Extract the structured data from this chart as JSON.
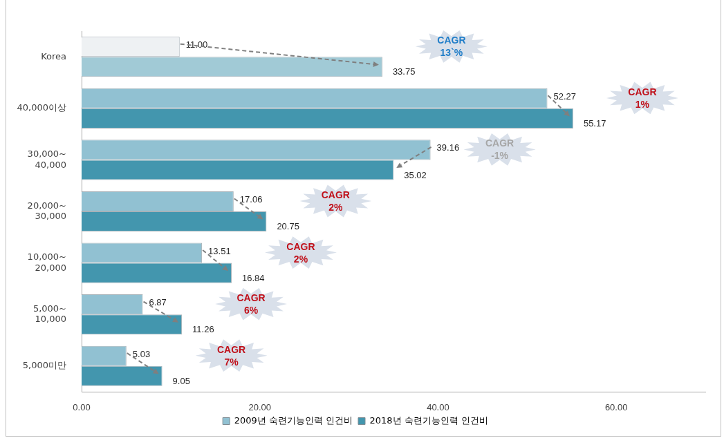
{
  "chart_data": {
    "type": "bar",
    "orientation": "horizontal",
    "categories": [
      "Korea",
      "40,000이상",
      "30,000~ 40,000",
      "20,000~ 30,000",
      "10,000~ 20,000",
      "5,000~ 10,000",
      "5,000미만"
    ],
    "series": [
      {
        "name": "2009년 숙련기능인력 인건비",
        "color": "#91c1d2",
        "colors": [
          "#eef1f3",
          "#91c1d2",
          "#91c1d2",
          "#91c1d2",
          "#91c1d2",
          "#91c1d2",
          "#91c1d2"
        ],
        "values": [
          11.0,
          52.27,
          39.16,
          17.06,
          13.51,
          6.87,
          5.03
        ],
        "value_labels": [
          "11.00",
          "52.27",
          "39.16",
          "17.06",
          "13.51",
          "6.87",
          "5.03"
        ]
      },
      {
        "name": "2018년 숙련기능인력 인건비",
        "color": "#4396ae",
        "colors": [
          "#a1cad6",
          "#4396ae",
          "#4396ae",
          "#4396ae",
          "#4396ae",
          "#4396ae",
          "#4396ae"
        ],
        "values": [
          33.75,
          55.17,
          35.02,
          20.75,
          16.84,
          11.26,
          9.05
        ],
        "value_labels": [
          "33.75",
          "55.17",
          "35.02",
          "20.75",
          "16.84",
          "11.26",
          "9.05"
        ]
      }
    ],
    "xlim": [
      0,
      70
    ],
    "xticks": [
      {
        "value": 0,
        "label": "0.00"
      },
      {
        "value": 20,
        "label": "20.00"
      },
      {
        "value": 40,
        "label": "40.00"
      },
      {
        "value": 60,
        "label": "60.00"
      }
    ],
    "legend": "bottom",
    "annotations": [
      "CAGR 13`%",
      "CAGR 1%",
      "CAGR -1%",
      "CAGR 2%",
      "CAGR 2%",
      "CAGR 6%",
      "CAGR 7%"
    ]
  }
}
